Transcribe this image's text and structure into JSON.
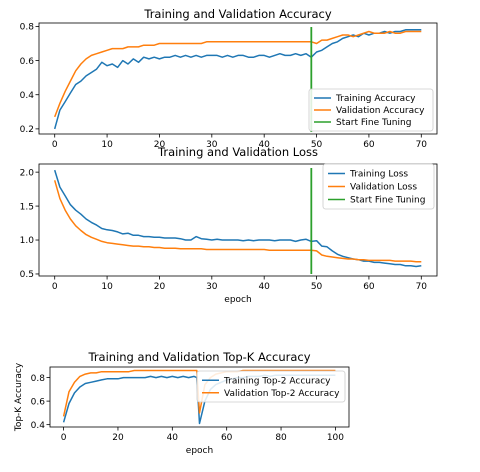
{
  "colors": {
    "training": "#1f77b4",
    "validation": "#ff7f0e",
    "fine_tune": "#2ca02c"
  },
  "chart_data": [
    {
      "type": "line",
      "title": "Training and Validation Accuracy",
      "xlabel": "",
      "ylabel": "",
      "xlim": [
        -3,
        73
      ],
      "ylim": [
        0.17,
        0.82
      ],
      "xticks": [
        0,
        10,
        20,
        30,
        40,
        50,
        60,
        70
      ],
      "yticks": [
        0.2,
        0.4,
        0.6,
        0.8
      ],
      "legend_position": "lower-right",
      "legend": [
        "Training Accuracy",
        "Validation Accuracy",
        "Start Fine Tuning"
      ],
      "vline": {
        "name": "Start Fine Tuning",
        "x": 49
      },
      "series": [
        {
          "name": "Training Accuracy",
          "x": [
            0,
            1,
            2,
            3,
            4,
            5,
            6,
            7,
            8,
            9,
            10,
            11,
            12,
            13,
            14,
            15,
            16,
            17,
            18,
            19,
            20,
            21,
            22,
            23,
            24,
            25,
            26,
            27,
            28,
            29,
            30,
            31,
            32,
            33,
            34,
            35,
            36,
            37,
            38,
            39,
            40,
            41,
            42,
            43,
            44,
            45,
            46,
            47,
            48,
            49,
            50,
            51,
            52,
            53,
            54,
            55,
            56,
            57,
            58,
            59,
            60,
            61,
            62,
            63,
            64,
            65,
            66,
            67,
            68,
            69,
            70
          ],
          "values": [
            0.2,
            0.31,
            0.36,
            0.41,
            0.46,
            0.48,
            0.51,
            0.53,
            0.55,
            0.59,
            0.57,
            0.58,
            0.56,
            0.6,
            0.58,
            0.61,
            0.59,
            0.62,
            0.61,
            0.62,
            0.61,
            0.62,
            0.62,
            0.63,
            0.62,
            0.63,
            0.62,
            0.63,
            0.62,
            0.63,
            0.63,
            0.63,
            0.62,
            0.63,
            0.62,
            0.63,
            0.63,
            0.62,
            0.62,
            0.63,
            0.63,
            0.62,
            0.63,
            0.64,
            0.63,
            0.63,
            0.64,
            0.63,
            0.64,
            0.62,
            0.65,
            0.66,
            0.68,
            0.7,
            0.71,
            0.73,
            0.74,
            0.75,
            0.74,
            0.76,
            0.75,
            0.76,
            0.76,
            0.77,
            0.76,
            0.77,
            0.77,
            0.78,
            0.78,
            0.78,
            0.78
          ]
        },
        {
          "name": "Validation Accuracy",
          "x": [
            0,
            1,
            2,
            3,
            4,
            5,
            6,
            7,
            8,
            9,
            10,
            11,
            12,
            13,
            14,
            15,
            16,
            17,
            18,
            19,
            20,
            21,
            22,
            23,
            24,
            25,
            26,
            27,
            28,
            29,
            30,
            31,
            32,
            33,
            34,
            35,
            36,
            37,
            38,
            39,
            40,
            41,
            42,
            43,
            44,
            45,
            46,
            47,
            48,
            49,
            50,
            51,
            52,
            53,
            54,
            55,
            56,
            57,
            58,
            59,
            60,
            61,
            62,
            63,
            64,
            65,
            66,
            67,
            68,
            69,
            70
          ],
          "values": [
            0.27,
            0.35,
            0.42,
            0.48,
            0.54,
            0.58,
            0.61,
            0.63,
            0.64,
            0.65,
            0.66,
            0.67,
            0.67,
            0.67,
            0.68,
            0.68,
            0.68,
            0.69,
            0.69,
            0.69,
            0.7,
            0.7,
            0.7,
            0.7,
            0.7,
            0.7,
            0.7,
            0.7,
            0.7,
            0.71,
            0.71,
            0.71,
            0.71,
            0.71,
            0.71,
            0.71,
            0.71,
            0.71,
            0.71,
            0.71,
            0.71,
            0.71,
            0.71,
            0.71,
            0.71,
            0.71,
            0.71,
            0.71,
            0.71,
            0.71,
            0.7,
            0.72,
            0.72,
            0.73,
            0.74,
            0.75,
            0.75,
            0.74,
            0.75,
            0.76,
            0.77,
            0.76,
            0.76,
            0.76,
            0.77,
            0.76,
            0.76,
            0.77,
            0.77,
            0.77,
            0.77
          ]
        }
      ]
    },
    {
      "type": "line",
      "title": "Training and Validation Loss",
      "xlabel": "epoch",
      "ylabel": "",
      "xlim": [
        -3,
        73
      ],
      "ylim": [
        0.47,
        2.12
      ],
      "xticks": [
        0,
        10,
        20,
        30,
        40,
        50,
        60,
        70
      ],
      "yticks": [
        0.5,
        1.0,
        1.5,
        2.0
      ],
      "legend_position": "upper-right",
      "legend": [
        "Training Loss",
        "Validation Loss",
        "Start Fine Tuning"
      ],
      "vline": {
        "name": "Start Fine Tuning",
        "x": 49
      },
      "series": [
        {
          "name": "Training Loss",
          "x": [
            0,
            1,
            2,
            3,
            4,
            5,
            6,
            7,
            8,
            9,
            10,
            11,
            12,
            13,
            14,
            15,
            16,
            17,
            18,
            19,
            20,
            21,
            22,
            23,
            24,
            25,
            26,
            27,
            28,
            29,
            30,
            31,
            32,
            33,
            34,
            35,
            36,
            37,
            38,
            39,
            40,
            41,
            42,
            43,
            44,
            45,
            46,
            47,
            48,
            49,
            50,
            51,
            52,
            53,
            54,
            55,
            56,
            57,
            58,
            59,
            60,
            61,
            62,
            63,
            64,
            65,
            66,
            67,
            68,
            69,
            70
          ],
          "values": [
            2.03,
            1.78,
            1.65,
            1.52,
            1.44,
            1.38,
            1.31,
            1.26,
            1.22,
            1.17,
            1.15,
            1.14,
            1.12,
            1.09,
            1.1,
            1.07,
            1.07,
            1.05,
            1.05,
            1.04,
            1.04,
            1.03,
            1.03,
            1.03,
            1.02,
            1.0,
            1.0,
            1.05,
            1.02,
            1.01,
            1.0,
            1.01,
            1.0,
            1.0,
            1.0,
            1.0,
            0.99,
            1.0,
            0.99,
            1.0,
            1.0,
            1.0,
            0.99,
            1.0,
            1.0,
            1.0,
            0.98,
            1.0,
            1.01,
            0.98,
            0.99,
            0.91,
            0.9,
            0.84,
            0.79,
            0.76,
            0.74,
            0.72,
            0.71,
            0.69,
            0.69,
            0.67,
            0.67,
            0.66,
            0.65,
            0.64,
            0.64,
            0.62,
            0.62,
            0.61,
            0.62
          ]
        },
        {
          "name": "Validation Loss",
          "x": [
            0,
            1,
            2,
            3,
            4,
            5,
            6,
            7,
            8,
            9,
            10,
            11,
            12,
            13,
            14,
            15,
            16,
            17,
            18,
            19,
            20,
            21,
            22,
            23,
            24,
            25,
            26,
            27,
            28,
            29,
            30,
            31,
            32,
            33,
            34,
            35,
            36,
            37,
            38,
            39,
            40,
            41,
            42,
            43,
            44,
            45,
            46,
            47,
            48,
            49,
            50,
            51,
            52,
            53,
            54,
            55,
            56,
            57,
            58,
            59,
            60,
            61,
            62,
            63,
            64,
            65,
            66,
            67,
            68,
            69,
            70
          ],
          "values": [
            1.88,
            1.61,
            1.44,
            1.31,
            1.21,
            1.14,
            1.08,
            1.04,
            1.01,
            0.98,
            0.96,
            0.95,
            0.94,
            0.93,
            0.92,
            0.91,
            0.91,
            0.9,
            0.9,
            0.89,
            0.89,
            0.88,
            0.88,
            0.88,
            0.87,
            0.87,
            0.87,
            0.87,
            0.87,
            0.86,
            0.86,
            0.86,
            0.86,
            0.86,
            0.86,
            0.86,
            0.86,
            0.86,
            0.86,
            0.86,
            0.86,
            0.85,
            0.85,
            0.85,
            0.85,
            0.85,
            0.85,
            0.85,
            0.85,
            0.85,
            0.84,
            0.78,
            0.76,
            0.75,
            0.74,
            0.73,
            0.72,
            0.72,
            0.71,
            0.71,
            0.7,
            0.7,
            0.7,
            0.7,
            0.7,
            0.69,
            0.69,
            0.69,
            0.69,
            0.68,
            0.68
          ]
        }
      ]
    },
    {
      "type": "line",
      "title": "Training and Validation Top-K Accuracy",
      "xlabel": "epoch",
      "ylabel": "Top-K Accuracy",
      "xlim": [
        -5,
        105
      ],
      "ylim": [
        0.38,
        0.89
      ],
      "xticks": [
        0,
        20,
        40,
        60,
        80,
        100
      ],
      "yticks": [
        0.4,
        0.6,
        0.8
      ],
      "legend_position": "center-right",
      "legend": [
        "Training Top-2 Accuracy",
        "Validation Top-2 Accuracy"
      ],
      "series": [
        {
          "name": "Training Top-2 Accuracy",
          "x": [
            0,
            2,
            4,
            6,
            8,
            10,
            12,
            14,
            16,
            18,
            20,
            22,
            24,
            26,
            28,
            30,
            32,
            34,
            36,
            38,
            40,
            42,
            44,
            46,
            48,
            49,
            50,
            52,
            54,
            56,
            58,
            60,
            62,
            64,
            66,
            68,
            70,
            72,
            74,
            76,
            78,
            80,
            82,
            84,
            86,
            88,
            90,
            92,
            94,
            96,
            98,
            100
          ],
          "values": [
            0.42,
            0.58,
            0.67,
            0.72,
            0.75,
            0.76,
            0.77,
            0.78,
            0.79,
            0.79,
            0.79,
            0.8,
            0.8,
            0.8,
            0.8,
            0.8,
            0.81,
            0.8,
            0.81,
            0.8,
            0.81,
            0.8,
            0.81,
            0.8,
            0.81,
            0.8,
            0.41,
            0.6,
            0.7,
            0.74,
            0.76,
            0.78,
            0.79,
            0.8,
            0.8,
            0.81,
            0.81,
            0.81,
            0.82,
            0.81,
            0.82,
            0.82,
            0.82,
            0.82,
            0.82,
            0.82,
            0.82,
            0.82,
            0.82,
            0.82,
            0.82,
            0.82
          ]
        },
        {
          "name": "Validation Top-2 Accuracy",
          "x": [
            0,
            2,
            4,
            6,
            8,
            10,
            12,
            14,
            16,
            18,
            20,
            22,
            24,
            26,
            28,
            30,
            32,
            34,
            36,
            38,
            40,
            42,
            44,
            46,
            48,
            49,
            50,
            52,
            54,
            56,
            58,
            60,
            62,
            64,
            66,
            68,
            70,
            72,
            74,
            76,
            78,
            80,
            82,
            84,
            86,
            88,
            90,
            92,
            94,
            96,
            98,
            100
          ],
          "values": [
            0.47,
            0.68,
            0.76,
            0.81,
            0.83,
            0.84,
            0.84,
            0.85,
            0.85,
            0.85,
            0.85,
            0.85,
            0.85,
            0.86,
            0.86,
            0.86,
            0.86,
            0.86,
            0.86,
            0.86,
            0.86,
            0.86,
            0.86,
            0.86,
            0.86,
            0.86,
            0.5,
            0.74,
            0.8,
            0.83,
            0.84,
            0.85,
            0.85,
            0.85,
            0.86,
            0.86,
            0.86,
            0.86,
            0.86,
            0.86,
            0.86,
            0.86,
            0.86,
            0.86,
            0.86,
            0.86,
            0.86,
            0.86,
            0.86,
            0.86,
            0.86,
            0.86
          ]
        }
      ]
    }
  ]
}
